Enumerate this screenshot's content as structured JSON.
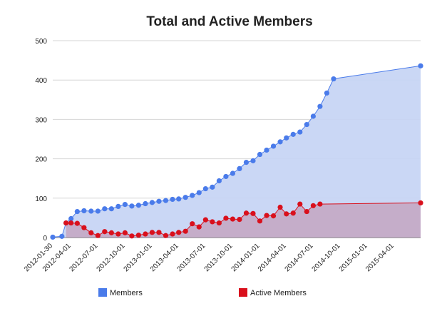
{
  "chart_data": {
    "type": "area",
    "title": "Total and Active Members",
    "xlabel": "",
    "ylabel": "",
    "ylim": [
      0,
      500
    ],
    "yticks": [
      0,
      100,
      200,
      300,
      400,
      500
    ],
    "xlim": [
      "2012-01-30",
      "2015-06-30"
    ],
    "xticks": [
      "2012-01-30",
      "2012-04-01",
      "2012-07-01",
      "2012-10-01",
      "2013-01-01",
      "2013-04-01",
      "2013-07-01",
      "2013-10-01",
      "2014-01-01",
      "2014-04-01",
      "2014-07-01",
      "2014-10-01",
      "2015-01-01",
      "2015-04-01"
    ],
    "grid": true,
    "legend": "bottom",
    "series": [
      {
        "name": "Members",
        "color": "#4a7bea",
        "fill": "#c6d4f4",
        "points": [
          [
            "2012-01-30",
            1
          ],
          [
            "2012-03-01",
            3
          ],
          [
            "2012-03-15",
            37
          ],
          [
            "2012-04-01",
            48
          ],
          [
            "2012-04-22",
            66
          ],
          [
            "2012-05-15",
            68
          ],
          [
            "2012-06-08",
            67
          ],
          [
            "2012-07-01",
            67
          ],
          [
            "2012-07-24",
            73
          ],
          [
            "2012-08-16",
            73
          ],
          [
            "2012-09-08",
            79
          ],
          [
            "2012-10-01",
            84
          ],
          [
            "2012-10-24",
            80
          ],
          [
            "2012-11-16",
            82
          ],
          [
            "2012-12-09",
            86
          ],
          [
            "2013-01-01",
            89
          ],
          [
            "2013-01-24",
            92
          ],
          [
            "2013-02-16",
            94
          ],
          [
            "2013-03-11",
            97
          ],
          [
            "2013-04-01",
            98
          ],
          [
            "2013-04-24",
            102
          ],
          [
            "2013-05-17",
            107
          ],
          [
            "2013-06-09",
            114
          ],
          [
            "2013-07-01",
            124
          ],
          [
            "2013-07-24",
            128
          ],
          [
            "2013-08-16",
            144
          ],
          [
            "2013-09-08",
            155
          ],
          [
            "2013-10-01",
            163
          ],
          [
            "2013-10-24",
            175
          ],
          [
            "2013-11-16",
            191
          ],
          [
            "2013-12-09",
            195
          ],
          [
            "2014-01-01",
            211
          ],
          [
            "2014-01-24",
            222
          ],
          [
            "2014-02-16",
            232
          ],
          [
            "2014-03-11",
            243
          ],
          [
            "2014-04-01",
            253
          ],
          [
            "2014-04-24",
            262
          ],
          [
            "2014-05-17",
            268
          ],
          [
            "2014-06-09",
            287
          ],
          [
            "2014-07-01",
            308
          ],
          [
            "2014-07-24",
            333
          ],
          [
            "2014-08-16",
            367
          ],
          [
            "2014-09-08",
            403
          ],
          [
            "2015-06-30",
            436
          ]
        ]
      },
      {
        "name": "Active Members",
        "color": "#d9101c",
        "fill": "#c4a9c4",
        "points": [
          [
            "2012-03-15",
            37
          ],
          [
            "2012-04-01",
            37
          ],
          [
            "2012-04-22",
            36
          ],
          [
            "2012-05-15",
            25
          ],
          [
            "2012-06-08",
            12
          ],
          [
            "2012-07-01",
            5
          ],
          [
            "2012-07-24",
            15
          ],
          [
            "2012-08-16",
            12
          ],
          [
            "2012-09-08",
            9
          ],
          [
            "2012-10-01",
            12
          ],
          [
            "2012-10-24",
            4
          ],
          [
            "2012-11-16",
            6
          ],
          [
            "2012-12-09",
            9
          ],
          [
            "2013-01-01",
            13
          ],
          [
            "2013-01-24",
            13
          ],
          [
            "2013-02-16",
            5
          ],
          [
            "2013-03-11",
            9
          ],
          [
            "2013-04-01",
            13
          ],
          [
            "2013-04-24",
            16
          ],
          [
            "2013-05-17",
            35
          ],
          [
            "2013-06-09",
            27
          ],
          [
            "2013-07-01",
            45
          ],
          [
            "2013-07-24",
            40
          ],
          [
            "2013-08-16",
            37
          ],
          [
            "2013-09-08",
            49
          ],
          [
            "2013-10-01",
            47
          ],
          [
            "2013-10-24",
            46
          ],
          [
            "2013-11-16",
            62
          ],
          [
            "2013-12-09",
            61
          ],
          [
            "2014-01-01",
            42
          ],
          [
            "2014-01-24",
            56
          ],
          [
            "2014-02-16",
            55
          ],
          [
            "2014-03-11",
            77
          ],
          [
            "2014-04-01",
            60
          ],
          [
            "2014-04-24",
            62
          ],
          [
            "2014-05-17",
            85
          ],
          [
            "2014-06-09",
            66
          ],
          [
            "2014-07-01",
            81
          ],
          [
            "2014-07-24",
            85
          ],
          [
            "2015-06-30",
            88
          ]
        ]
      }
    ]
  }
}
